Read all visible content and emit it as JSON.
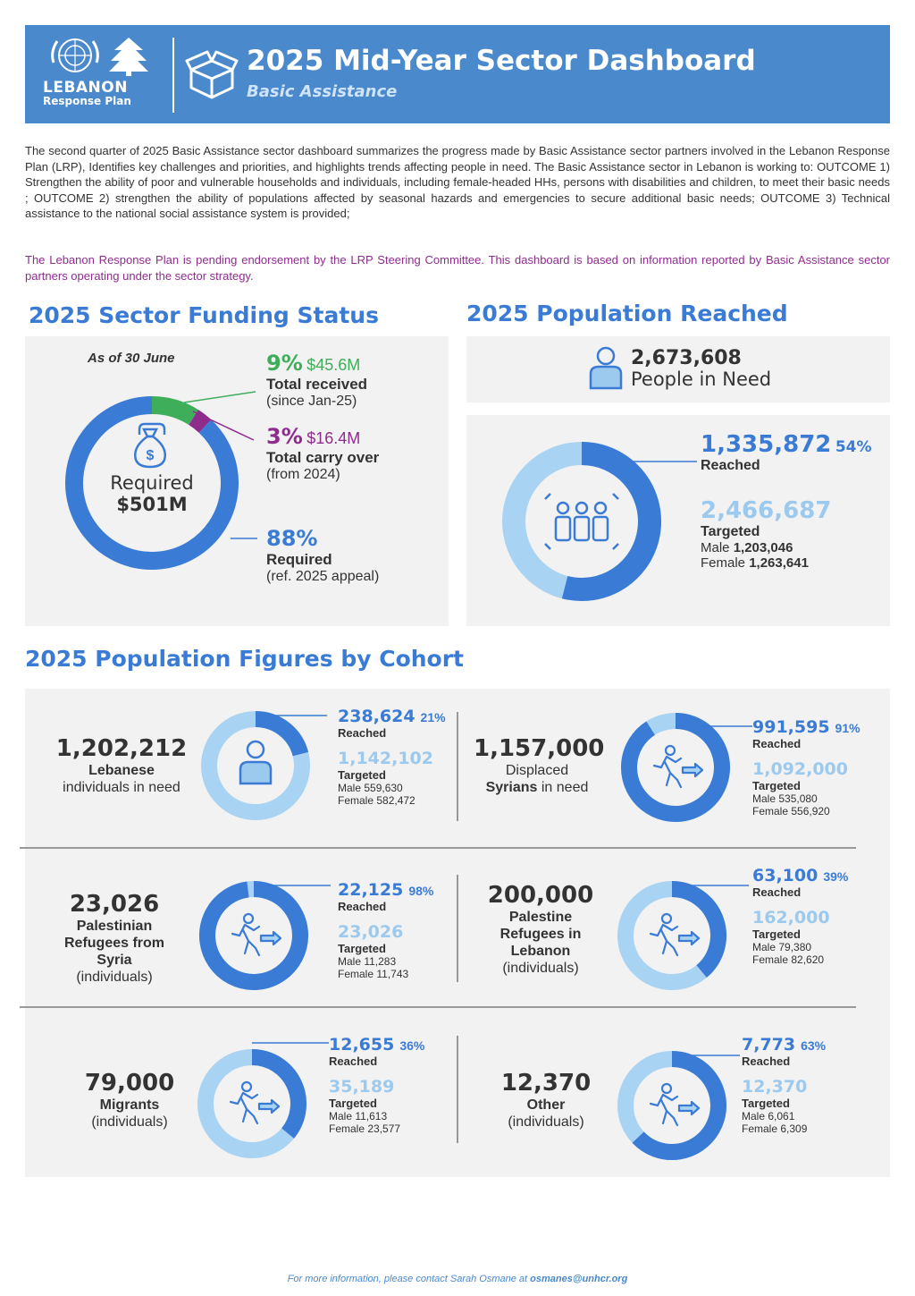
{
  "header": {
    "logo_title": "LEBANON",
    "logo_sub": "Response Plan",
    "title": "2025 Mid-Year Sector Dashboard",
    "subtitle": "Basic Assistance"
  },
  "intro": "The second quarter of 2025 Basic Assistance sector dashboard summarizes the progress made by Basic Assistance sector partners involved in the Lebanon Response Plan (LRP), Identifies key challenges and priorities, and highlights trends affecting people in need. The Basic Assistance sector in Lebanon is working to: OUTCOME 1) Strengthen the ability of poor and vulnerable households and individuals, including female-headed HHs, persons with disabilities and children, to meet their basic needs ; OUTCOME 2) strengthen the ability of populations affected by seasonal hazards and emergencies to secure additional basic needs; OUTCOME 3) Technical assistance to the national social assistance system is provided;",
  "note": "The Lebanon Response Plan is pending endorsement by the LRP Steering Committee. This dashboard is based on information reported by Basic Assistance sector partners operating under the sector strategy.",
  "funding": {
    "heading": "2025 Sector Funding Status",
    "as_of": "As of 30 June",
    "center_label": "Required",
    "center_value": "$501M",
    "received_pct": "9%",
    "received_amt": "$45.6M",
    "received_label": "Total received",
    "received_note": "(since Jan-25)",
    "carry_pct": "3%",
    "carry_amt": "$16.4M",
    "carry_label": "Total carry over",
    "carry_note": "(from 2024)",
    "required_pct": "88%",
    "required_label": "Required",
    "required_note": "(ref. 2025 appeal)",
    "shares": [
      9,
      3,
      88
    ],
    "colors": [
      "#3fae5a",
      "#8e2c8e",
      "#3a7bd5"
    ]
  },
  "population": {
    "heading": "2025 Population Reached",
    "pin_value": "2,673,608",
    "pin_label": "People in Need",
    "reached": "1,335,872",
    "reached_pct": "54%",
    "reached_label": "Reached",
    "targeted": "2,466,687",
    "targeted_label": "Targeted",
    "male_label": "Male",
    "male": "1,203,046",
    "female_label": "Female",
    "female": "1,263,641",
    "fraction": 0.54
  },
  "cohorts_heading": "2025 Population Figures by Cohort",
  "cohorts": [
    {
      "num": "1,202,212",
      "name": "Lebanese",
      "desc": "individuals in need",
      "reached": "238,624",
      "pct": "21%",
      "reached_label": "Reached",
      "targeted": "1,142,102",
      "targeted_label": "Targeted",
      "male": "Male 559,630",
      "female": "Female 582,472",
      "fraction": 0.21,
      "icon": "person-icon"
    },
    {
      "num": "1,157,000",
      "name_pre": "Displaced",
      "name": "Syrians",
      "desc": "in need",
      "reached": "991,595",
      "pct": "91%",
      "reached_label": "Reached",
      "targeted": "1,092,000",
      "targeted_label": "Targeted",
      "male": "Male 535,080",
      "female": "Female 556,920",
      "fraction": 0.91,
      "icon": "running-person-icon"
    },
    {
      "num": "23,026",
      "name": "Palestinian Refugees from Syria",
      "desc": "(individuals)",
      "reached": "22,125",
      "pct": "98%",
      "reached_label": "Reached",
      "targeted": "23,026",
      "targeted_label": "Targeted",
      "male": "Male 11,283",
      "female": "Female 11,743",
      "fraction": 0.98,
      "icon": "running-person-icon"
    },
    {
      "num": "200,000",
      "name": "Palestine Refugees in Lebanon",
      "desc": "(individuals)",
      "reached": "63,100",
      "pct": "39%",
      "reached_label": "Reached",
      "targeted": "162,000",
      "targeted_label": "Targeted",
      "male": "Male 79,380",
      "female": "Female 82,620",
      "fraction": 0.39,
      "icon": "running-person-icon"
    },
    {
      "num": "79,000",
      "name": "Migrants",
      "desc": "(individuals)",
      "reached": "12,655",
      "pct": "36%",
      "reached_label": "Reached",
      "targeted": "35,189",
      "targeted_label": "Targeted",
      "male": "Male 11,613",
      "female": "Female 23,577",
      "fraction": 0.36,
      "icon": "running-person-icon"
    },
    {
      "num": "12,370",
      "name": "Other",
      "desc": "(individuals)",
      "reached": "7,773",
      "pct": "63%",
      "reached_label": "Reached",
      "targeted": "12,370",
      "targeted_label": "Targeted",
      "male": "Male 6,061",
      "female": "Female 6,309",
      "fraction": 0.63,
      "icon": "running-person-icon"
    }
  ],
  "footer_text": "For more information, please contact Sarah Osmane at",
  "footer_email": "osmanes@unhcr.org"
}
